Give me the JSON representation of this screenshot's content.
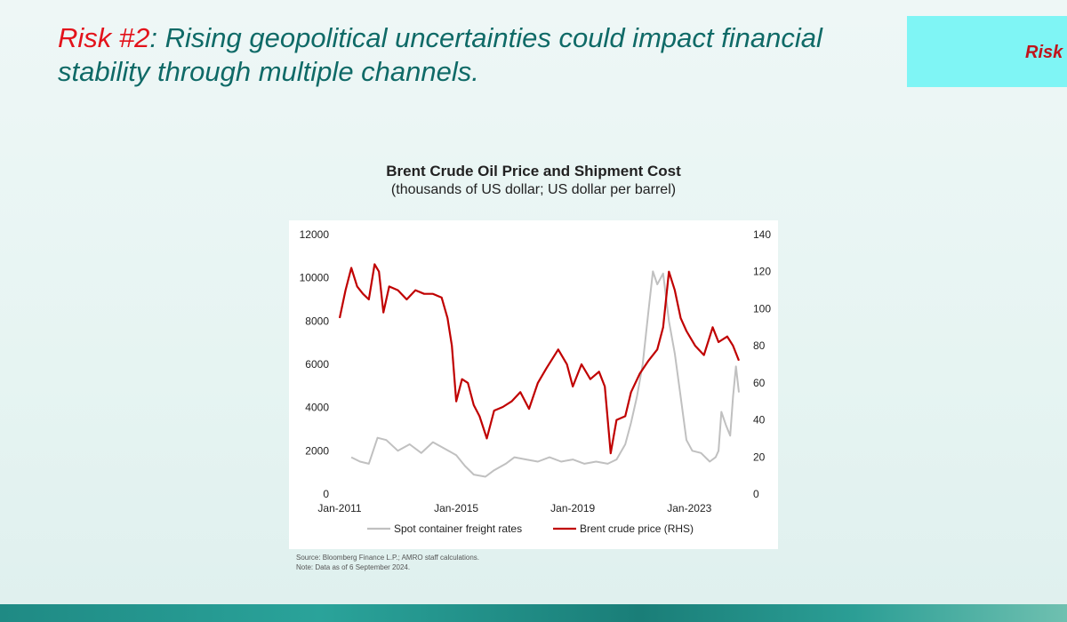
{
  "slide": {
    "title_risk": "Risk #2",
    "title_rest": ": Rising geopolitical uncertainties could impact financial stability through multiple channels.",
    "side_tab_label": "Risk",
    "colors": {
      "title_teal": "#0f6a67",
      "risk_red": "#e3131b",
      "tab_cyan": "#7ff5f5"
    }
  },
  "chart_data": {
    "type": "line",
    "title": "Brent Crude Oil Price and Shipment Cost",
    "subtitle": "(thousands of US dollar; US dollar per barrel)",
    "x_ticks": [
      "Jan-2011",
      "Jan-2015",
      "Jan-2019",
      "Jan-2023"
    ],
    "x_range": [
      2011.0,
      2024.7
    ],
    "y_left": {
      "range": [
        0,
        12000
      ],
      "ticks": [
        0,
        2000,
        4000,
        6000,
        8000,
        10000,
        12000
      ]
    },
    "y_right": {
      "range": [
        0,
        140
      ],
      "ticks": [
        0,
        20,
        40,
        60,
        80,
        100,
        120,
        140
      ]
    },
    "grid": false,
    "legend_position": "bottom",
    "series": [
      {
        "name": "Spot container freight rates",
        "axis": "left",
        "color": "#c0c0c0",
        "x": [
          2011.4,
          2011.7,
          2012.0,
          2012.3,
          2012.6,
          2013.0,
          2013.4,
          2013.8,
          2014.2,
          2014.6,
          2015.0,
          2015.3,
          2015.6,
          2016.0,
          2016.3,
          2016.7,
          2017.0,
          2017.4,
          2017.8,
          2018.2,
          2018.6,
          2019.0,
          2019.4,
          2019.8,
          2020.2,
          2020.5,
          2020.8,
          2021.0,
          2021.2,
          2021.4,
          2021.6,
          2021.75,
          2021.9,
          2022.1,
          2022.3,
          2022.5,
          2022.7,
          2022.9,
          2023.1,
          2023.4,
          2023.7,
          2023.9,
          2024.0,
          2024.1,
          2024.25,
          2024.4,
          2024.5,
          2024.6,
          2024.7
        ],
        "values": [
          1700,
          1500,
          1400,
          2600,
          2500,
          2000,
          2300,
          1900,
          2400,
          2100,
          1800,
          1300,
          900,
          800,
          1100,
          1400,
          1700,
          1600,
          1500,
          1700,
          1500,
          1600,
          1400,
          1500,
          1400,
          1600,
          2300,
          3300,
          4500,
          6000,
          8500,
          10300,
          9700,
          10200,
          8000,
          6500,
          4500,
          2500,
          2000,
          1900,
          1500,
          1700,
          2000,
          3800,
          3200,
          2700,
          4500,
          5900,
          4700
        ]
      },
      {
        "name": "Brent crude price (RHS)",
        "axis": "right",
        "color": "#c00000",
        "x": [
          2011.0,
          2011.2,
          2011.4,
          2011.6,
          2011.8,
          2012.0,
          2012.2,
          2012.35,
          2012.5,
          2012.7,
          2013.0,
          2013.3,
          2013.6,
          2013.9,
          2014.2,
          2014.5,
          2014.7,
          2014.85,
          2015.0,
          2015.2,
          2015.4,
          2015.6,
          2015.8,
          2016.05,
          2016.3,
          2016.6,
          2016.9,
          2017.2,
          2017.5,
          2017.8,
          2018.1,
          2018.5,
          2018.8,
          2019.0,
          2019.3,
          2019.6,
          2019.9,
          2020.1,
          2020.3,
          2020.5,
          2020.8,
          2021.0,
          2021.3,
          2021.6,
          2021.9,
          2022.1,
          2022.3,
          2022.5,
          2022.7,
          2022.9,
          2023.2,
          2023.5,
          2023.8,
          2024.0,
          2024.3,
          2024.5,
          2024.7
        ],
        "values": [
          95,
          110,
          122,
          112,
          108,
          105,
          124,
          120,
          98,
          112,
          110,
          105,
          110,
          108,
          108,
          106,
          95,
          80,
          50,
          62,
          60,
          48,
          42,
          30,
          45,
          47,
          50,
          55,
          46,
          60,
          68,
          78,
          70,
          58,
          70,
          62,
          66,
          58,
          22,
          40,
          42,
          55,
          65,
          72,
          78,
          90,
          120,
          110,
          95,
          88,
          80,
          75,
          90,
          82,
          85,
          80,
          72
        ]
      }
    ]
  },
  "notes": {
    "source": "Source: Bloomberg Finance L.P.; AMRO staff calculations.",
    "note": "Note: Data as of 6 September 2024."
  }
}
